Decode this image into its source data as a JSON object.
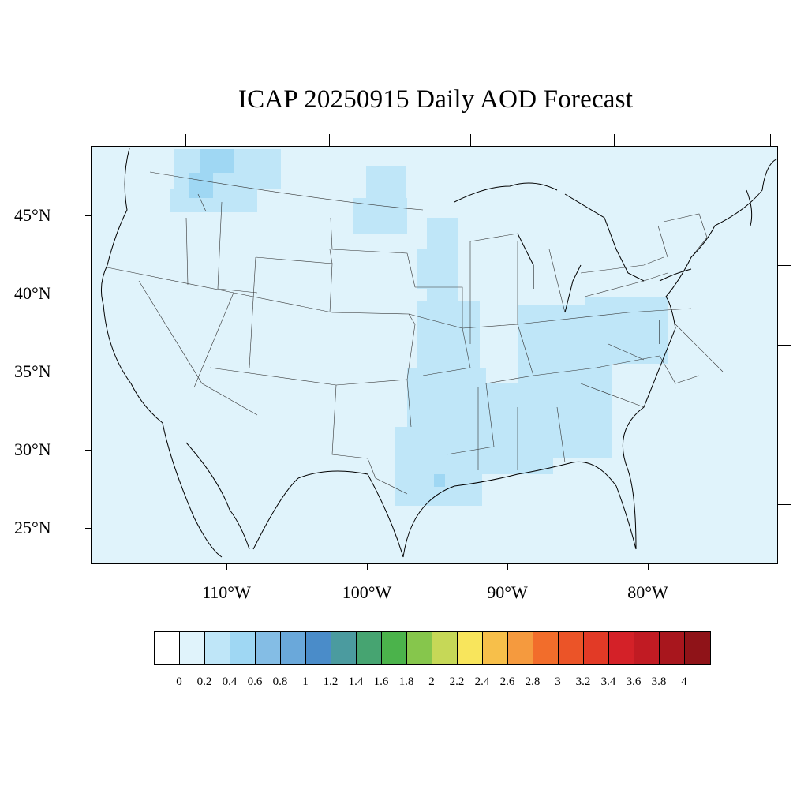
{
  "title": "ICAP 20250915 Daily AOD Forecast",
  "lat_labels": [
    "45°N",
    "40°N",
    "35°N",
    "30°N",
    "25°N"
  ],
  "lon_labels": [
    "110°W",
    "100°W",
    "90°W",
    "80°W"
  ],
  "colorbar": {
    "colors": [
      "#ffffff",
      "#e0f3fb",
      "#bfe6f8",
      "#9fd7f3",
      "#84bde5",
      "#6aa8da",
      "#4a8cc9",
      "#4b9b9f",
      "#46a471",
      "#4bb34b",
      "#86c64c",
      "#c6d857",
      "#f8e55c",
      "#f7bf4a",
      "#f59a3e",
      "#f26d2b",
      "#eb5428",
      "#e23a26",
      "#d42128",
      "#c11b23",
      "#a8161d",
      "#8f1318"
    ],
    "labels": [
      "0",
      "0.2",
      "0.4",
      "0.6",
      "0.8",
      "1",
      "1.2",
      "1.4",
      "1.6",
      "1.8",
      "2",
      "2.2",
      "2.4",
      "2.6",
      "2.8",
      "3",
      "3.2",
      "3.4",
      "3.6",
      "3.8",
      "4"
    ]
  },
  "colors": {
    "background_aod": "#e0f3fb",
    "aod_02_04": "#bfe6f8",
    "aod_04_06": "#9fd7f3",
    "outline": "#000000"
  }
}
